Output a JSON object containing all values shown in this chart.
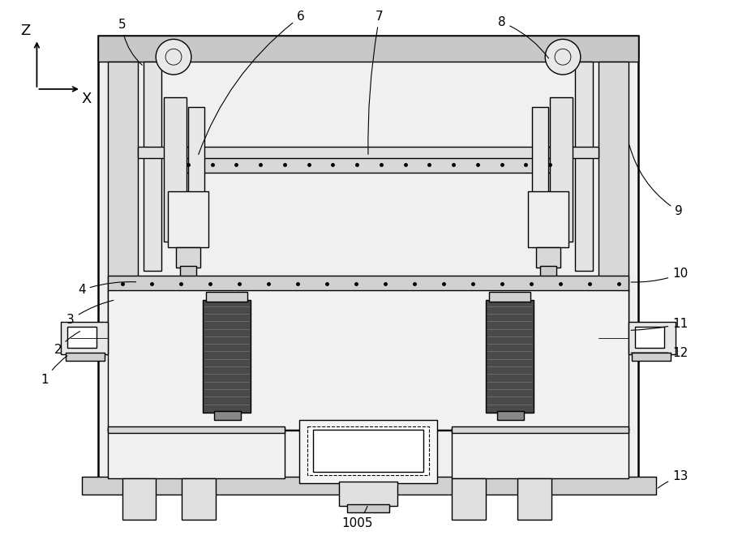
{
  "bg_color": "#ffffff",
  "lw": 1.0,
  "tlw": 0.6,
  "thk": 1.8,
  "fig_width": 9.1,
  "fig_height": 6.71
}
